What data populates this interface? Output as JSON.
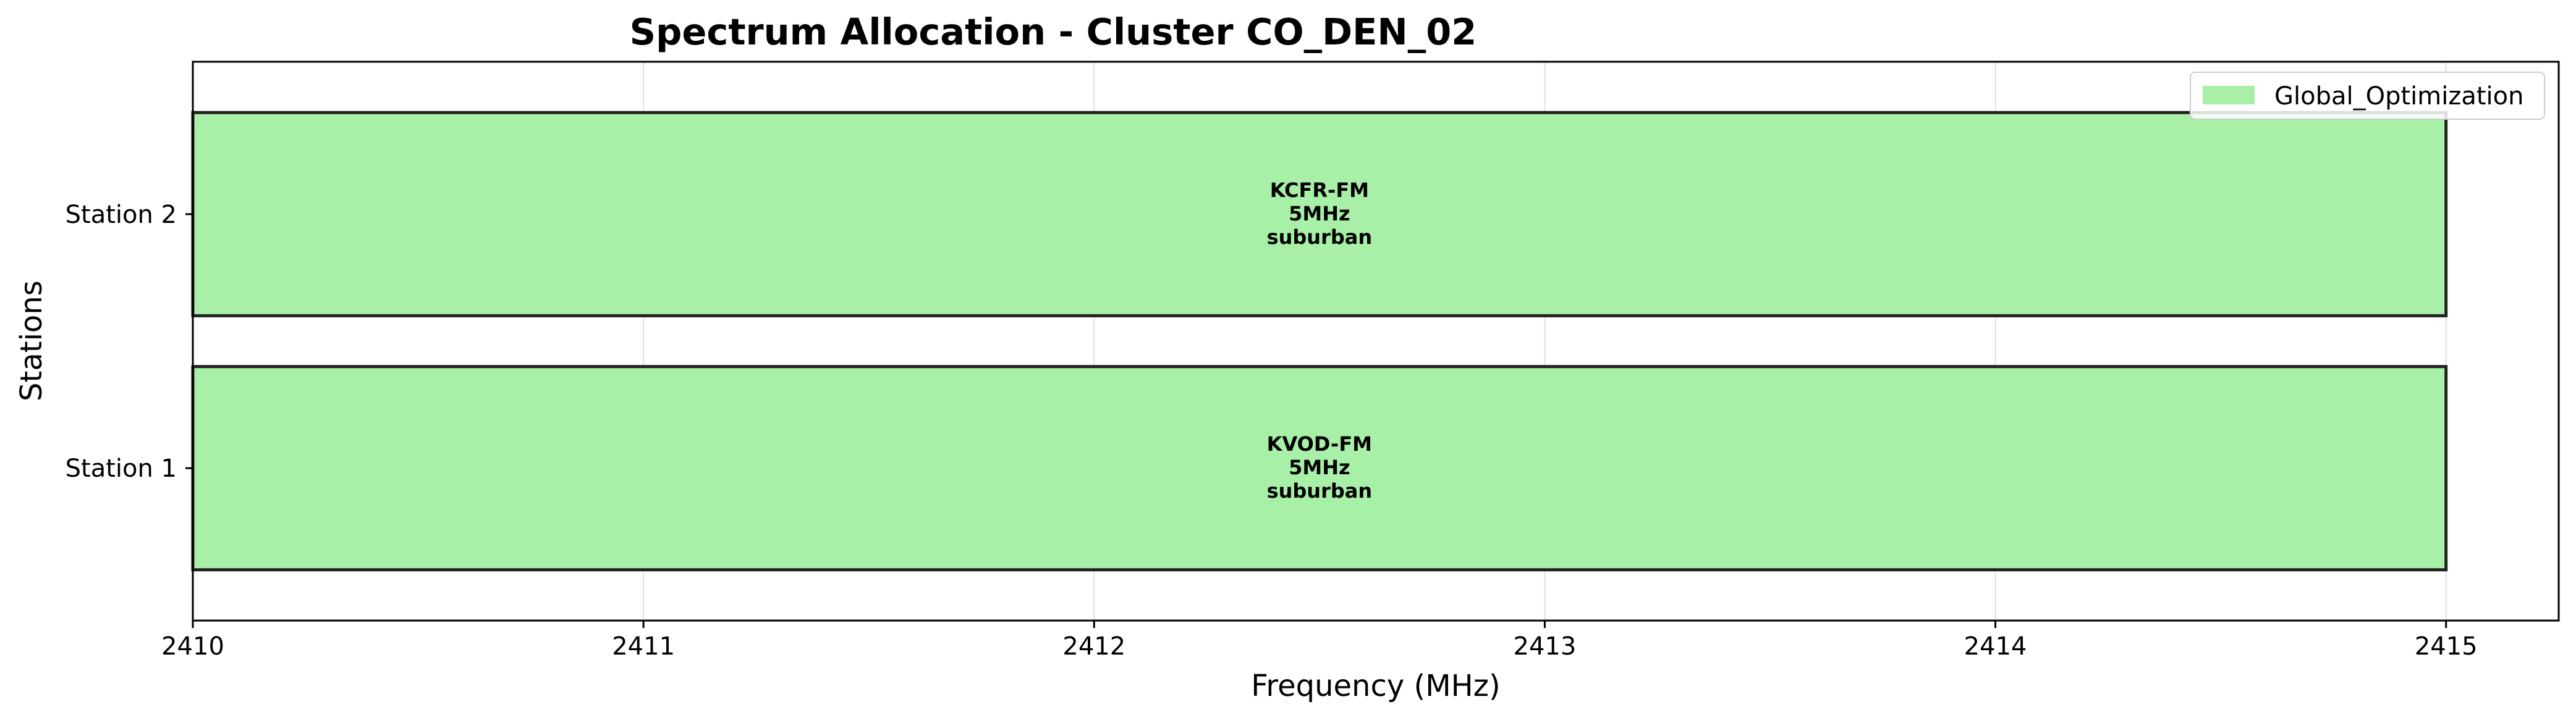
{
  "chart_data": {
    "type": "bar",
    "orientation": "horizontal",
    "title": "Spectrum Allocation - Cluster CO_DEN_02",
    "xlabel": "Frequency (MHz)",
    "ylabel": "Stations",
    "xlim": [
      2410,
      2415.25
    ],
    "x_ticks": [
      "2410",
      "2411",
      "2412",
      "2413",
      "2414",
      "2415"
    ],
    "categories": [
      "Station 1",
      "Station 2"
    ],
    "grid": true,
    "legend_position": "top-right",
    "series": [
      {
        "name": "Global_Optimization",
        "color": "#a8f0a8",
        "bars": [
          {
            "category": "Station 1",
            "start": 2410,
            "end": 2415,
            "label_lines": [
              "KVOD-FM",
              "5MHz",
              "suburban"
            ]
          },
          {
            "category": "Station 2",
            "start": 2410,
            "end": 2415,
            "label_lines": [
              "KCFR-FM",
              "5MHz",
              "suburban"
            ]
          }
        ]
      }
    ]
  }
}
